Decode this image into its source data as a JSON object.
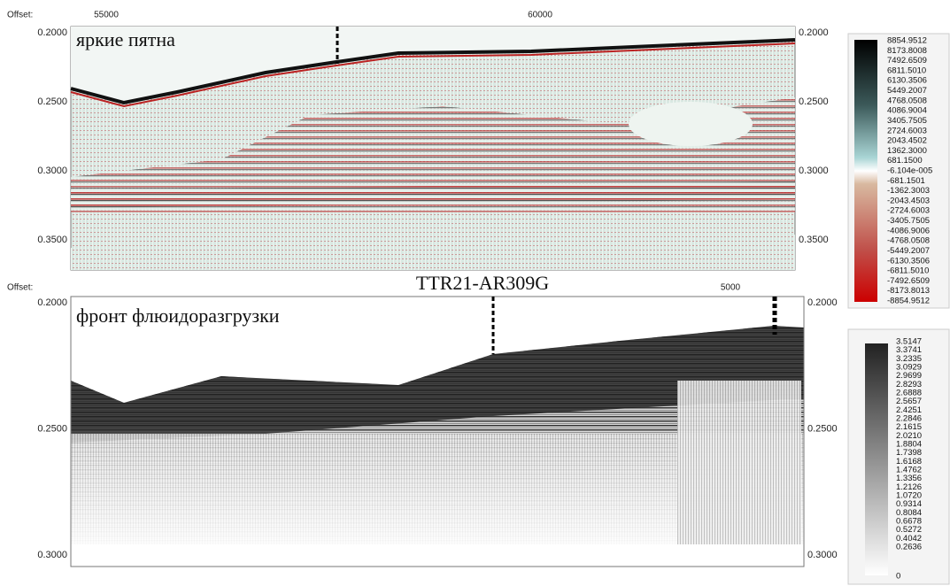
{
  "top_panel": {
    "offset_label": "Offset:",
    "x_labels": [
      "55000",
      "60000"
    ],
    "y_labels": [
      "0.2000",
      "0.2500",
      "0.3000",
      "0.3500"
    ],
    "annotation": "яркие пятна"
  },
  "title": "TTR21-AR309G",
  "bottom_panel": {
    "offset_label": "Offset:",
    "x_labels": [
      "5000"
    ],
    "y_labels": [
      "0.2000",
      "0.2500",
      "0.3000"
    ],
    "annotation": "фронт флюидоразгрузки"
  },
  "colorbar_top": {
    "labels": [
      "8854.9512",
      "8173.8008",
      "7492.6509",
      "6811.5010",
      "6130.3506",
      "5449.2007",
      "4768.0508",
      "4086.9004",
      "3405.7505",
      "2724.6003",
      "2043.4502",
      "1362.3000",
      "681.1500",
      "-6.104e-005",
      "-681.1501",
      "-1362.3003",
      "-2043.4503",
      "-2724.6003",
      "-3405.7505",
      "-4086.9006",
      "-4768.0508",
      "-5449.2007",
      "-6130.3506",
      "-6811.5010",
      "-7492.6509",
      "-8173.8013",
      "-8854.9512"
    ]
  },
  "colorbar_bottom": {
    "labels": [
      "3.5147",
      "3.3741",
      "3.2335",
      "3.0929",
      "2.9699",
      "2.8293",
      "2.6888",
      "2.5657",
      "2.4251",
      "2.2846",
      "2.1615",
      "2.0210",
      "1.8804",
      "1.7398",
      "1.6168",
      "1.4762",
      "1.3356",
      "1.2126",
      "1.0720",
      "0.9314",
      "0.8084",
      "0.6678",
      "0.5272",
      "0.4042",
      "0.2636",
      "0"
    ]
  }
}
